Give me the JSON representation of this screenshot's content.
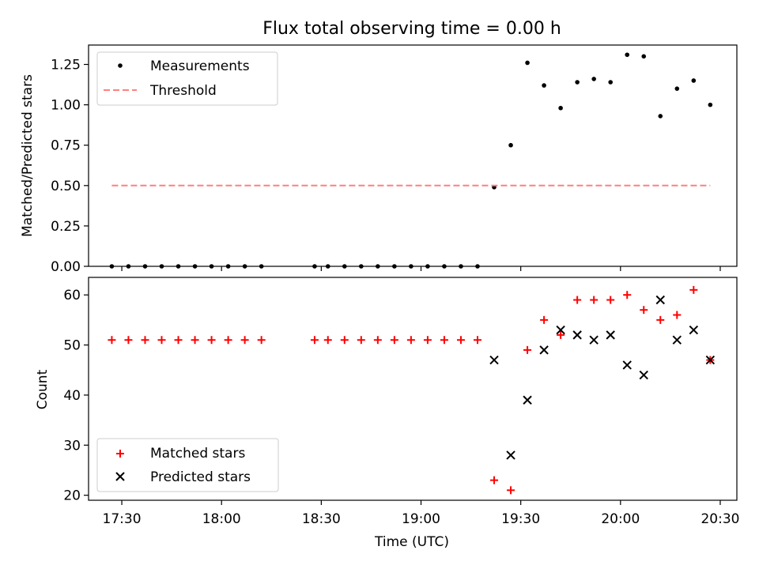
{
  "chart_data": [
    {
      "type": "scatter",
      "title": "Flux total observing time = 0.00 h",
      "xlabel": "",
      "ylabel": "Matched/Predicted stars",
      "xlim": [
        "17:20",
        "20:35"
      ],
      "ylim": [
        0,
        1.37
      ],
      "yticks": [
        0.0,
        0.25,
        0.5,
        0.75,
        1.0,
        1.25
      ],
      "ytick_labels": [
        "0.00",
        "0.25",
        "0.50",
        "0.75",
        "1.00",
        "1.25"
      ],
      "legend_position": "top-left",
      "series": [
        {
          "name": "Measurements",
          "kind": "dots",
          "color": "#000000",
          "x": [
            "17:27",
            "17:32",
            "17:37",
            "17:42",
            "17:47",
            "17:52",
            "17:57",
            "18:02",
            "18:07",
            "18:12",
            "18:28",
            "18:32",
            "18:37",
            "18:42",
            "18:47",
            "18:52",
            "18:57",
            "19:02",
            "19:07",
            "19:12",
            "19:17",
            "19:22",
            "19:27",
            "19:32",
            "19:37",
            "19:42",
            "19:47",
            "19:52",
            "19:57",
            "20:02",
            "20:07",
            "20:12",
            "20:17",
            "20:22",
            "20:27"
          ],
          "y": [
            0,
            0,
            0,
            0,
            0,
            0,
            0,
            0,
            0,
            0,
            0,
            0,
            0,
            0,
            0,
            0,
            0,
            0,
            0,
            0,
            0,
            0.49,
            0.75,
            1.26,
            1.12,
            0.98,
            1.14,
            1.16,
            1.14,
            1.31,
            1.3,
            0.93,
            1.1,
            1.15,
            1.0
          ]
        },
        {
          "name": "Threshold",
          "kind": "dashed-line",
          "color": "#ff7f7f",
          "x": [
            "17:27",
            "20:27"
          ],
          "y": [
            0.5,
            0.5
          ]
        }
      ]
    },
    {
      "type": "scatter",
      "title": "",
      "xlabel": "Time (UTC)",
      "ylabel": "Count",
      "xlim": [
        "17:20",
        "20:35"
      ],
      "ylim": [
        19,
        63.5
      ],
      "yticks": [
        20,
        30,
        40,
        50,
        60
      ],
      "ytick_labels": [
        "20",
        "30",
        "40",
        "50",
        "60"
      ],
      "xticks": [
        "17:30",
        "18:00",
        "18:30",
        "19:00",
        "19:30",
        "20:00",
        "20:30"
      ],
      "legend_position": "bottom-left",
      "series": [
        {
          "name": "Matched stars",
          "kind": "plus",
          "color": "#ff0000",
          "x": [
            "17:27",
            "17:32",
            "17:37",
            "17:42",
            "17:47",
            "17:52",
            "17:57",
            "18:02",
            "18:07",
            "18:12",
            "18:28",
            "18:32",
            "18:37",
            "18:42",
            "18:47",
            "18:52",
            "18:57",
            "19:02",
            "19:07",
            "19:12",
            "19:17",
            "19:22",
            "19:27",
            "19:32",
            "19:37",
            "19:42",
            "19:47",
            "19:52",
            "19:57",
            "20:02",
            "20:07",
            "20:12",
            "20:17",
            "20:22",
            "20:27"
          ],
          "y": [
            51,
            51,
            51,
            51,
            51,
            51,
            51,
            51,
            51,
            51,
            51,
            51,
            51,
            51,
            51,
            51,
            51,
            51,
            51,
            51,
            51,
            23,
            21,
            49,
            55,
            52,
            59,
            59,
            59,
            60,
            57,
            55,
            56,
            61,
            47
          ]
        },
        {
          "name": "Predicted stars",
          "kind": "x",
          "color": "#000000",
          "x": [
            "19:22",
            "19:27",
            "19:32",
            "19:37",
            "19:42",
            "19:47",
            "19:52",
            "19:57",
            "20:02",
            "20:07",
            "20:12",
            "20:17",
            "20:22",
            "20:27"
          ],
          "y": [
            47,
            28,
            39,
            49,
            53,
            52,
            51,
            52,
            46,
            44,
            59,
            51,
            53,
            47
          ]
        }
      ]
    }
  ]
}
